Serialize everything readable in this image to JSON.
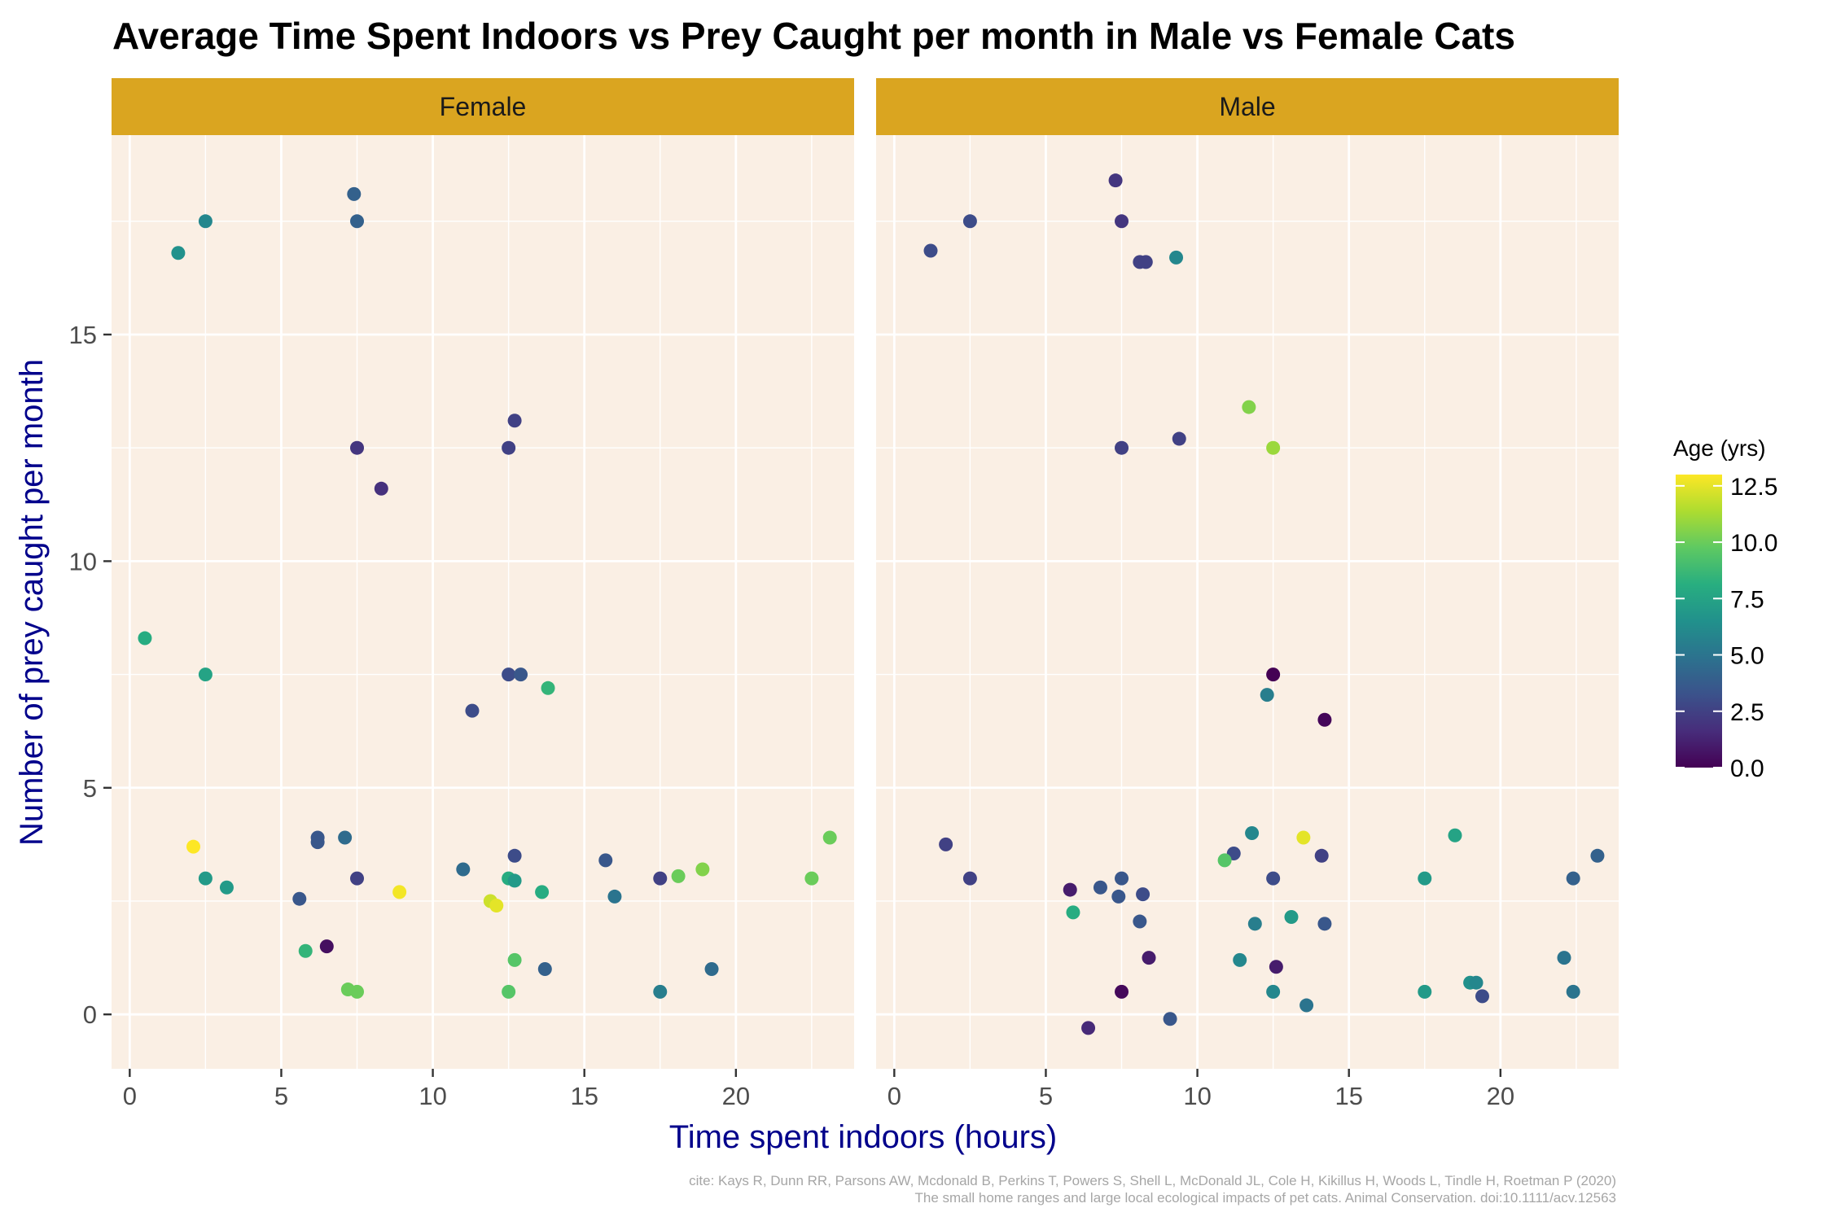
{
  "chart_data": {
    "type": "scatter",
    "title": "Average Time Spent Indoors vs Prey Caught per month in Male vs Female Cats",
    "xlabel": "Time spent indoors (hours)",
    "ylabel": "Number of prey caught per month",
    "xlim": [
      -0.6,
      23.9
    ],
    "ylim": [
      -1.2,
      19.4
    ],
    "x_ticks": [
      0,
      5,
      10,
      15,
      20
    ],
    "y_ticks": [
      0,
      5,
      10,
      15
    ],
    "grid": true,
    "legend": {
      "title": "Age (yrs)",
      "position": "right",
      "type": "colorbar",
      "range": [
        0,
        13
      ],
      "ticks": [
        0,
        2.5,
        5,
        7.5,
        10,
        12.5
      ],
      "tick_labels": [
        "0.0",
        "2.5",
        "5.0",
        "7.5",
        "10.0",
        "12.5"
      ],
      "palette": "viridis"
    },
    "colors": {
      "strip": "#DAA520",
      "panel_background": "#FAEFE4",
      "axis_title": "#00008B"
    },
    "caption": [
      "cite: Kays R, Dunn RR, Parsons AW, Mcdonald B, Perkins T, Powers S, Shell L, McDonald JL, Cole H, Kikillus H, Woods L, Tindle H, Roetman P (2020)",
      "The small home ranges and large local ecological impacts of pet cats. Animal Conservation. doi:10.1111/acv.12563"
    ],
    "facets": [
      {
        "label": "Female",
        "points": [
          {
            "x": 1.6,
            "y": 16.8,
            "age": 6.5
          },
          {
            "x": 2.5,
            "y": 17.5,
            "age": 6.0
          },
          {
            "x": 7.4,
            "y": 18.1,
            "age": 4.0
          },
          {
            "x": 7.5,
            "y": 17.5,
            "age": 4.0
          },
          {
            "x": 7.5,
            "y": 12.5,
            "age": 2.0
          },
          {
            "x": 8.3,
            "y": 11.6,
            "age": 1.8
          },
          {
            "x": 12.5,
            "y": 12.5,
            "age": 2.5
          },
          {
            "x": 12.7,
            "y": 13.1,
            "age": 2.5
          },
          {
            "x": 0.5,
            "y": 8.3,
            "age": 8.0
          },
          {
            "x": 2.5,
            "y": 7.5,
            "age": 7.5
          },
          {
            "x": 12.5,
            "y": 7.5,
            "age": 3.0
          },
          {
            "x": 12.9,
            "y": 7.5,
            "age": 3.5
          },
          {
            "x": 13.8,
            "y": 7.2,
            "age": 8.5
          },
          {
            "x": 11.3,
            "y": 6.7,
            "age": 3.0
          },
          {
            "x": 2.1,
            "y": 3.7,
            "age": 13.0
          },
          {
            "x": 6.2,
            "y": 3.9,
            "age": 3.5
          },
          {
            "x": 6.2,
            "y": 3.8,
            "age": 3.5
          },
          {
            "x": 7.1,
            "y": 3.9,
            "age": 4.5
          },
          {
            "x": 2.5,
            "y": 3.0,
            "age": 7.0
          },
          {
            "x": 3.2,
            "y": 2.8,
            "age": 7.0
          },
          {
            "x": 7.5,
            "y": 3.0,
            "age": 2.5
          },
          {
            "x": 5.6,
            "y": 2.55,
            "age": 3.5
          },
          {
            "x": 8.9,
            "y": 2.7,
            "age": 12.8
          },
          {
            "x": 11.0,
            "y": 3.2,
            "age": 4.5
          },
          {
            "x": 12.7,
            "y": 3.5,
            "age": 3.0
          },
          {
            "x": 12.5,
            "y": 3.0,
            "age": 8.0
          },
          {
            "x": 12.7,
            "y": 2.95,
            "age": 7.0
          },
          {
            "x": 13.6,
            "y": 2.7,
            "age": 8.0
          },
          {
            "x": 11.9,
            "y": 2.5,
            "age": 12.0
          },
          {
            "x": 12.1,
            "y": 2.4,
            "age": 12.5
          },
          {
            "x": 15.7,
            "y": 3.4,
            "age": 3.5
          },
          {
            "x": 16.0,
            "y": 2.6,
            "age": 5.0
          },
          {
            "x": 17.5,
            "y": 3.0,
            "age": 2.5
          },
          {
            "x": 18.1,
            "y": 3.05,
            "age": 10.0
          },
          {
            "x": 18.9,
            "y": 3.2,
            "age": 10.5
          },
          {
            "x": 22.5,
            "y": 3.0,
            "age": 10.0
          },
          {
            "x": 23.1,
            "y": 3.9,
            "age": 10.0
          },
          {
            "x": 5.8,
            "y": 1.4,
            "age": 8.5
          },
          {
            "x": 6.5,
            "y": 1.5,
            "age": 0.5
          },
          {
            "x": 7.2,
            "y": 0.55,
            "age": 10.0
          },
          {
            "x": 7.5,
            "y": 0.5,
            "age": 10.0
          },
          {
            "x": 12.5,
            "y": 0.5,
            "age": 9.5
          },
          {
            "x": 12.7,
            "y": 1.2,
            "age": 9.5
          },
          {
            "x": 13.7,
            "y": 1.0,
            "age": 4.0
          },
          {
            "x": 17.5,
            "y": 0.5,
            "age": 5.5
          },
          {
            "x": 19.2,
            "y": 1.0,
            "age": 4.5
          }
        ]
      },
      {
        "label": "Male",
        "points": [
          {
            "x": 1.2,
            "y": 16.85,
            "age": 3.0
          },
          {
            "x": 2.5,
            "y": 17.5,
            "age": 3.0
          },
          {
            "x": 7.3,
            "y": 18.4,
            "age": 2.0
          },
          {
            "x": 7.5,
            "y": 17.5,
            "age": 2.0
          },
          {
            "x": 8.1,
            "y": 16.6,
            "age": 2.5
          },
          {
            "x": 8.3,
            "y": 16.6,
            "age": 2.5
          },
          {
            "x": 9.3,
            "y": 16.7,
            "age": 6.0
          },
          {
            "x": 7.5,
            "y": 12.5,
            "age": 2.5
          },
          {
            "x": 9.4,
            "y": 12.7,
            "age": 2.5
          },
          {
            "x": 11.7,
            "y": 13.4,
            "age": 10.5
          },
          {
            "x": 12.5,
            "y": 12.5,
            "age": 11.0
          },
          {
            "x": 12.5,
            "y": 7.5,
            "age": 0.0
          },
          {
            "x": 12.3,
            "y": 7.05,
            "age": 5.5
          },
          {
            "x": 14.2,
            "y": 6.5,
            "age": 0.2
          },
          {
            "x": 1.7,
            "y": 3.75,
            "age": 2.5
          },
          {
            "x": 2.5,
            "y": 3.0,
            "age": 2.5
          },
          {
            "x": 5.8,
            "y": 2.75,
            "age": 1.0
          },
          {
            "x": 6.8,
            "y": 2.8,
            "age": 3.5
          },
          {
            "x": 7.4,
            "y": 2.6,
            "age": 3.5
          },
          {
            "x": 7.5,
            "y": 3.0,
            "age": 3.5
          },
          {
            "x": 8.2,
            "y": 2.65,
            "age": 3.0
          },
          {
            "x": 8.1,
            "y": 2.05,
            "age": 3.5
          },
          {
            "x": 5.9,
            "y": 2.25,
            "age": 8.0
          },
          {
            "x": 11.2,
            "y": 3.55,
            "age": 3.0
          },
          {
            "x": 11.8,
            "y": 4.0,
            "age": 6.0
          },
          {
            "x": 10.9,
            "y": 3.4,
            "age": 9.5
          },
          {
            "x": 12.5,
            "y": 3.0,
            "age": 3.0
          },
          {
            "x": 11.9,
            "y": 2.0,
            "age": 5.5
          },
          {
            "x": 13.1,
            "y": 2.15,
            "age": 7.0
          },
          {
            "x": 13.5,
            "y": 3.9,
            "age": 12.5
          },
          {
            "x": 14.1,
            "y": 3.5,
            "age": 2.5
          },
          {
            "x": 14.2,
            "y": 2.0,
            "age": 3.5
          },
          {
            "x": 8.4,
            "y": 1.25,
            "age": 1.0
          },
          {
            "x": 7.5,
            "y": 0.5,
            "age": 0.3
          },
          {
            "x": 6.4,
            "y": -0.3,
            "age": 1.5
          },
          {
            "x": 9.1,
            "y": -0.1,
            "age": 3.5
          },
          {
            "x": 11.4,
            "y": 1.2,
            "age": 6.0
          },
          {
            "x": 12.6,
            "y": 1.05,
            "age": 1.0
          },
          {
            "x": 12.5,
            "y": 0.5,
            "age": 6.0
          },
          {
            "x": 13.6,
            "y": 0.2,
            "age": 5.0
          },
          {
            "x": 17.5,
            "y": 3.0,
            "age": 7.0
          },
          {
            "x": 18.5,
            "y": 3.95,
            "age": 7.5
          },
          {
            "x": 17.5,
            "y": 0.5,
            "age": 7.0
          },
          {
            "x": 19.0,
            "y": 0.7,
            "age": 6.5
          },
          {
            "x": 19.2,
            "y": 0.7,
            "age": 6.0
          },
          {
            "x": 19.4,
            "y": 0.4,
            "age": 3.0
          },
          {
            "x": 22.1,
            "y": 1.25,
            "age": 5.0
          },
          {
            "x": 22.4,
            "y": 3.0,
            "age": 4.0
          },
          {
            "x": 22.4,
            "y": 0.5,
            "age": 5.0
          },
          {
            "x": 23.2,
            "y": 3.5,
            "age": 4.0
          }
        ]
      }
    ]
  }
}
